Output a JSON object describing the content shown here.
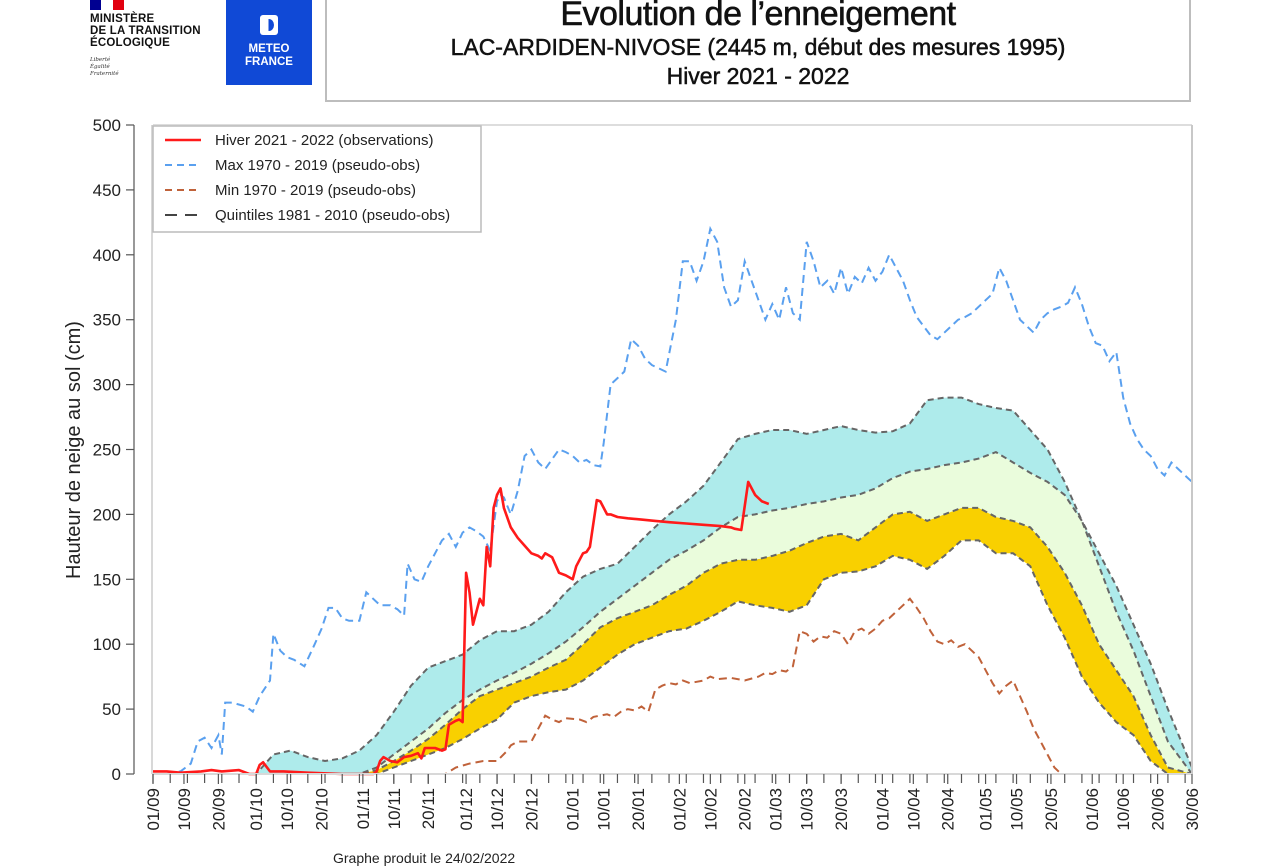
{
  "header": {
    "ministry": {
      "name": "MINISTÈRE\nDE LA TRANSITION\nÉCOLOGIQUE",
      "motto": "Liberté\nÉgalité\nFraternité",
      "flag_colors": [
        "#000091",
        "#ffffff",
        "#e1000f"
      ]
    },
    "meteo_france": {
      "name": "METEO\nFRANCE",
      "brand_color": "#1049d6"
    },
    "title": "Evolution de l’enneigement",
    "subtitle": "LAC-ARDIDEN-NIVOSE (2445 m, début des mesures 1995)",
    "season": "Hiver 2021 - 2022"
  },
  "footer": {
    "text": "Graphe produit le 24/02/2022"
  },
  "chart_data": {
    "type": "line",
    "title": "Evolution de l’enneigement",
    "xlabel": "",
    "ylabel": "Hauteur de neige au sol (cm)",
    "ylim": [
      0,
      500
    ],
    "yticks": [
      0,
      50,
      100,
      150,
      200,
      250,
      300,
      350,
      400,
      450,
      500
    ],
    "x_unit": "days since 01/09",
    "xlim": [
      0,
      302
    ],
    "xticks": [
      {
        "day": 0,
        "label": "01/09"
      },
      {
        "day": 9,
        "label": "10/09"
      },
      {
        "day": 19,
        "label": "20/09"
      },
      {
        "day": 30,
        "label": "01/10"
      },
      {
        "day": 39,
        "label": "10/10"
      },
      {
        "day": 49,
        "label": "20/10"
      },
      {
        "day": 61,
        "label": "01/11"
      },
      {
        "day": 70,
        "label": "10/11"
      },
      {
        "day": 80,
        "label": "20/11"
      },
      {
        "day": 91,
        "label": "01/12"
      },
      {
        "day": 100,
        "label": "10/12"
      },
      {
        "day": 110,
        "label": "20/12"
      },
      {
        "day": 122,
        "label": "01/01"
      },
      {
        "day": 131,
        "label": "10/01"
      },
      {
        "day": 141,
        "label": "20/01"
      },
      {
        "day": 153,
        "label": "01/02"
      },
      {
        "day": 162,
        "label": "10/02"
      },
      {
        "day": 172,
        "label": "20/02"
      },
      {
        "day": 181,
        "label": "01/03"
      },
      {
        "day": 190,
        "label": "10/03"
      },
      {
        "day": 200,
        "label": "20/03"
      },
      {
        "day": 212,
        "label": "01/04"
      },
      {
        "day": 221,
        "label": "10/04"
      },
      {
        "day": 231,
        "label": "20/04"
      },
      {
        "day": 242,
        "label": "01/05"
      },
      {
        "day": 251,
        "label": "10/05"
      },
      {
        "day": 261,
        "label": "20/05"
      },
      {
        "day": 273,
        "label": "01/06"
      },
      {
        "day": 282,
        "label": "10/06"
      },
      {
        "day": 292,
        "label": "20/06"
      },
      {
        "day": 302,
        "label": "30/06"
      }
    ],
    "minor_tick_step_days": 5,
    "grid": false,
    "legend_position": "top-left",
    "legend": [
      {
        "label": "Hiver 2021 - 2022 (observations)",
        "color": "#ff1a1a",
        "style": "solid"
      },
      {
        "label": "Max 1970 - 2019 (pseudo-obs)",
        "color": "#5aa0ef",
        "style": "dashed"
      },
      {
        "label": "Min 1970 - 2019 (pseudo-obs)",
        "color": "#c0623a",
        "style": "dashed"
      },
      {
        "label": "Quintiles 1981 - 2010 (pseudo-obs)",
        "color": "#444444",
        "style": "dashed"
      }
    ],
    "band_colors": {
      "q80_q100": "#aeebeb",
      "q60_q80": "#eafcdc",
      "q40_q60": "#f9d000"
    },
    "series": [
      {
        "name": "observations",
        "x": [
          0,
          4,
          8,
          14,
          17,
          20,
          25,
          28,
          30,
          31,
          32,
          34,
          38,
          45,
          55,
          61,
          64,
          65,
          66,
          67,
          69,
          71,
          73,
          75,
          77,
          78,
          79,
          82,
          84,
          85,
          86,
          88,
          89,
          90,
          91,
          92,
          93,
          94,
          95,
          96,
          97,
          98,
          99,
          100,
          101,
          102,
          104,
          106,
          108,
          110,
          112,
          113,
          114,
          116,
          118,
          120,
          122,
          123,
          125,
          126,
          127,
          129,
          130,
          131,
          132,
          133,
          135,
          138,
          142,
          146,
          150,
          155,
          160,
          165,
          168,
          169,
          171,
          173,
          175,
          177,
          179
        ],
        "y": [
          2,
          2,
          1,
          2,
          3,
          2,
          3,
          0,
          0,
          7,
          9,
          2,
          2,
          1,
          0,
          0,
          0,
          2,
          10,
          13,
          10,
          9,
          13,
          14,
          16,
          12,
          20,
          20,
          18,
          19,
          38,
          41,
          42,
          40,
          155,
          140,
          115,
          125,
          135,
          130,
          175,
          160,
          205,
          215,
          220,
          205,
          190,
          182,
          176,
          170,
          168,
          166,
          170,
          167,
          155,
          153,
          150,
          160,
          170,
          171,
          175,
          211,
          210,
          205,
          200,
          200,
          198,
          197,
          196,
          195,
          194,
          193,
          192,
          191,
          190,
          189,
          188,
          225,
          215,
          210,
          208
        ]
      },
      {
        "name": "Max 1970 - 2019",
        "x": [
          0,
          4,
          8,
          11,
          13,
          15,
          17,
          19,
          20,
          21,
          23,
          27,
          29,
          31,
          34,
          35,
          37,
          39,
          41,
          44,
          47,
          49,
          51,
          53,
          55,
          57,
          60,
          62,
          64,
          66,
          69,
          71,
          73,
          74,
          76,
          78,
          80,
          82,
          84,
          86,
          88,
          90,
          92,
          94,
          96,
          98,
          100,
          101,
          102,
          104,
          106,
          108,
          110,
          112,
          114,
          118,
          120,
          122,
          124,
          126,
          128,
          130,
          131,
          133,
          135,
          137,
          139,
          141,
          143,
          145,
          149,
          152,
          154,
          156,
          158,
          160,
          162,
          164,
          166,
          168,
          170,
          172,
          174,
          176,
          178,
          180,
          182,
          184,
          186,
          188,
          190,
          192,
          194,
          196,
          198,
          200,
          202,
          204,
          206,
          208,
          210,
          212,
          214,
          216,
          218,
          220,
          222,
          224,
          226,
          228,
          230,
          232,
          234,
          236,
          238,
          240,
          242,
          244,
          246,
          248,
          250,
          252,
          254,
          256,
          258,
          260,
          262,
          264,
          266,
          268,
          270,
          272,
          274,
          276,
          278,
          280,
          282,
          284,
          286,
          288,
          290,
          292,
          294,
          296,
          298,
          300,
          302
        ],
        "y": [
          0,
          0,
          2,
          8,
          25,
          28,
          20,
          30,
          15,
          55,
          55,
          52,
          48,
          60,
          72,
          108,
          95,
          90,
          88,
          83,
          100,
          112,
          128,
          128,
          120,
          118,
          118,
          140,
          135,
          130,
          130,
          127,
          122,
          162,
          150,
          148,
          160,
          170,
          180,
          185,
          175,
          186,
          190,
          187,
          183,
          172,
          210,
          215,
          213,
          200,
          218,
          245,
          250,
          240,
          235,
          250,
          248,
          245,
          240,
          242,
          238,
          237,
          255,
          300,
          305,
          310,
          335,
          330,
          320,
          315,
          310,
          350,
          395,
          395,
          380,
          395,
          420,
          410,
          375,
          360,
          365,
          395,
          380,
          365,
          350,
          362,
          350,
          375,
          355,
          350,
          410,
          395,
          375,
          380,
          370,
          390,
          370,
          383,
          378,
          390,
          380,
          387,
          400,
          390,
          380,
          365,
          352,
          345,
          338,
          335,
          340,
          345,
          350,
          352,
          355,
          360,
          365,
          370,
          390,
          380,
          365,
          350,
          345,
          340,
          350,
          355,
          358,
          360,
          363,
          375,
          362,
          345,
          332,
          330,
          318,
          325,
          290,
          270,
          258,
          250,
          245,
          235,
          230,
          240,
          235,
          230,
          225
        ]
      },
      {
        "name": "Min 1970 - 2019",
        "x": [
          0,
          60,
          85,
          88,
          92,
          96,
          100,
          103,
          104,
          106,
          110,
          113,
          114,
          116,
          118,
          120,
          124,
          126,
          128,
          130,
          132,
          134,
          136,
          138,
          140,
          142,
          144,
          146,
          148,
          150,
          152,
          154,
          156,
          158,
          160,
          162,
          164,
          168,
          172,
          176,
          178,
          180,
          182,
          184,
          186,
          188,
          190,
          192,
          194,
          196,
          198,
          200,
          202,
          204,
          206,
          208,
          210,
          212,
          214,
          216,
          218,
          220,
          222,
          224,
          226,
          228,
          230,
          232,
          234,
          236,
          238,
          240,
          242,
          244,
          246,
          248,
          250,
          252,
          254,
          256,
          258,
          260,
          262,
          264,
          266,
          268,
          270,
          272,
          280,
          290,
          302
        ],
        "y": [
          0,
          0,
          0,
          5,
          8,
          10,
          10,
          18,
          22,
          25,
          25,
          40,
          45,
          42,
          40,
          43,
          42,
          40,
          44,
          45,
          46,
          44,
          48,
          50,
          49,
          52,
          48,
          65,
          68,
          70,
          69,
          72,
          70,
          71,
          72,
          75,
          73,
          74,
          72,
          75,
          78,
          77,
          80,
          79,
          83,
          110,
          108,
          102,
          106,
          105,
          110,
          108,
          100,
          110,
          112,
          108,
          112,
          118,
          120,
          125,
          130,
          135,
          128,
          120,
          110,
          102,
          100,
          103,
          98,
          100,
          95,
          90,
          80,
          70,
          62,
          68,
          72,
          60,
          48,
          35,
          25,
          15,
          5,
          0,
          0,
          0,
          0,
          0,
          0,
          0,
          0
        ]
      },
      {
        "name": "Quintile 20",
        "x": [
          0,
          60,
          65,
          70,
          75,
          80,
          85,
          90,
          95,
          100,
          105,
          110,
          115,
          120,
          125,
          130,
          135,
          140,
          145,
          150,
          155,
          160,
          165,
          170,
          175,
          180,
          185,
          190,
          195,
          200,
          205,
          210,
          215,
          220,
          225,
          230,
          235,
          240,
          245,
          250,
          255,
          260,
          265,
          270,
          275,
          280,
          285,
          290,
          295,
          302
        ],
        "y": [
          0,
          0,
          0,
          5,
          10,
          15,
          20,
          27,
          35,
          42,
          55,
          60,
          63,
          65,
          72,
          82,
          92,
          100,
          105,
          110,
          112,
          118,
          125,
          133,
          130,
          128,
          125,
          130,
          150,
          155,
          156,
          160,
          168,
          165,
          158,
          168,
          180,
          180,
          170,
          170,
          160,
          130,
          105,
          75,
          55,
          40,
          30,
          10,
          0,
          0
        ]
      },
      {
        "name": "Quintile 40",
        "x": [
          0,
          60,
          65,
          70,
          75,
          80,
          85,
          90,
          95,
          100,
          105,
          110,
          115,
          120,
          125,
          130,
          135,
          140,
          145,
          150,
          155,
          160,
          165,
          170,
          175,
          180,
          185,
          190,
          195,
          200,
          205,
          210,
          215,
          220,
          225,
          230,
          235,
          240,
          245,
          250,
          255,
          260,
          265,
          270,
          275,
          280,
          285,
          290,
          295,
          302
        ],
        "y": [
          0,
          0,
          3,
          10,
          18,
          27,
          38,
          50,
          60,
          65,
          70,
          75,
          82,
          88,
          100,
          113,
          120,
          125,
          130,
          138,
          145,
          155,
          162,
          165,
          165,
          168,
          172,
          178,
          183,
          185,
          180,
          190,
          200,
          202,
          195,
          200,
          205,
          205,
          198,
          195,
          190,
          175,
          155,
          130,
          100,
          80,
          60,
          30,
          5,
          0
        ],
        "fill_between_next": "q40_q60"
      },
      {
        "name": "Quintile 60",
        "x": [
          0,
          60,
          65,
          70,
          75,
          80,
          85,
          90,
          95,
          100,
          105,
          110,
          115,
          120,
          125,
          130,
          135,
          140,
          145,
          150,
          155,
          160,
          165,
          170,
          175,
          180,
          185,
          190,
          195,
          200,
          205,
          210,
          215,
          220,
          225,
          230,
          235,
          240,
          245,
          250,
          255,
          260,
          265,
          270,
          275,
          280,
          285,
          290,
          295,
          302
        ],
        "y": [
          0,
          0,
          5,
          15,
          25,
          35,
          47,
          57,
          65,
          72,
          78,
          85,
          93,
          102,
          113,
          125,
          135,
          145,
          155,
          165,
          172,
          180,
          190,
          198,
          200,
          203,
          205,
          208,
          210,
          213,
          215,
          220,
          228,
          233,
          235,
          238,
          240,
          243,
          248,
          240,
          232,
          225,
          215,
          195,
          170,
          145,
          115,
          85,
          50,
          5
        ],
        "fill_between_next": "q60_q80"
      },
      {
        "name": "Quintile 80",
        "x": [
          0,
          30,
          35,
          40,
          45,
          50,
          55,
          60,
          65,
          70,
          75,
          80,
          85,
          90,
          95,
          100,
          105,
          110,
          115,
          120,
          125,
          130,
          135,
          140,
          145,
          150,
          155,
          160,
          165,
          170,
          175,
          180,
          185,
          190,
          195,
          200,
          205,
          210,
          215,
          220,
          225,
          230,
          235,
          240,
          245,
          250,
          255,
          260,
          265,
          270,
          275,
          280,
          285,
          290,
          295,
          302
        ],
        "y": [
          0,
          0,
          15,
          18,
          13,
          10,
          12,
          18,
          30,
          48,
          68,
          82,
          87,
          92,
          103,
          110,
          110,
          115,
          125,
          140,
          152,
          158,
          162,
          175,
          188,
          200,
          210,
          222,
          240,
          258,
          262,
          265,
          265,
          262,
          265,
          268,
          265,
          263,
          264,
          270,
          288,
          290,
          290,
          285,
          282,
          280,
          265,
          250,
          225,
          195,
          160,
          125,
          95,
          60,
          25,
          0
        ],
        "fill_between_next": "q80_q100"
      }
    ]
  }
}
